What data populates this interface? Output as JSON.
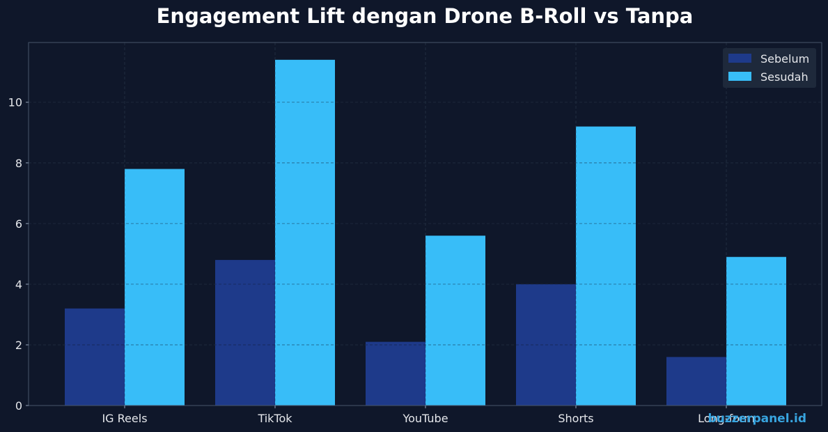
{
  "chart_data": {
    "type": "bar",
    "title": "Engagement Lift dengan Drone B-Roll vs Tanpa",
    "xlabel": "",
    "ylabel": "",
    "categories": [
      "IG Reels",
      "TikTok",
      "YouTube",
      "Shorts",
      "Long-form"
    ],
    "series": [
      {
        "name": "Sebelum",
        "values": [
          3.2,
          4.8,
          2.1,
          4.0,
          1.6
        ],
        "color": "#1e3a8a"
      },
      {
        "name": "Sesudah",
        "values": [
          7.8,
          11.4,
          5.6,
          9.2,
          4.9
        ],
        "color": "#38bdf8"
      }
    ],
    "ylim": [
      0,
      11.97
    ],
    "yticks": [
      "0",
      "2",
      "4",
      "6",
      "8",
      "10"
    ],
    "grid": true,
    "legend_position": "top-right"
  },
  "watermark": "buzzerpanel.id",
  "colors": {
    "background": "#0f172a",
    "grid": "#334155",
    "axis": "#475569",
    "legend_bg": "#1e293b"
  }
}
